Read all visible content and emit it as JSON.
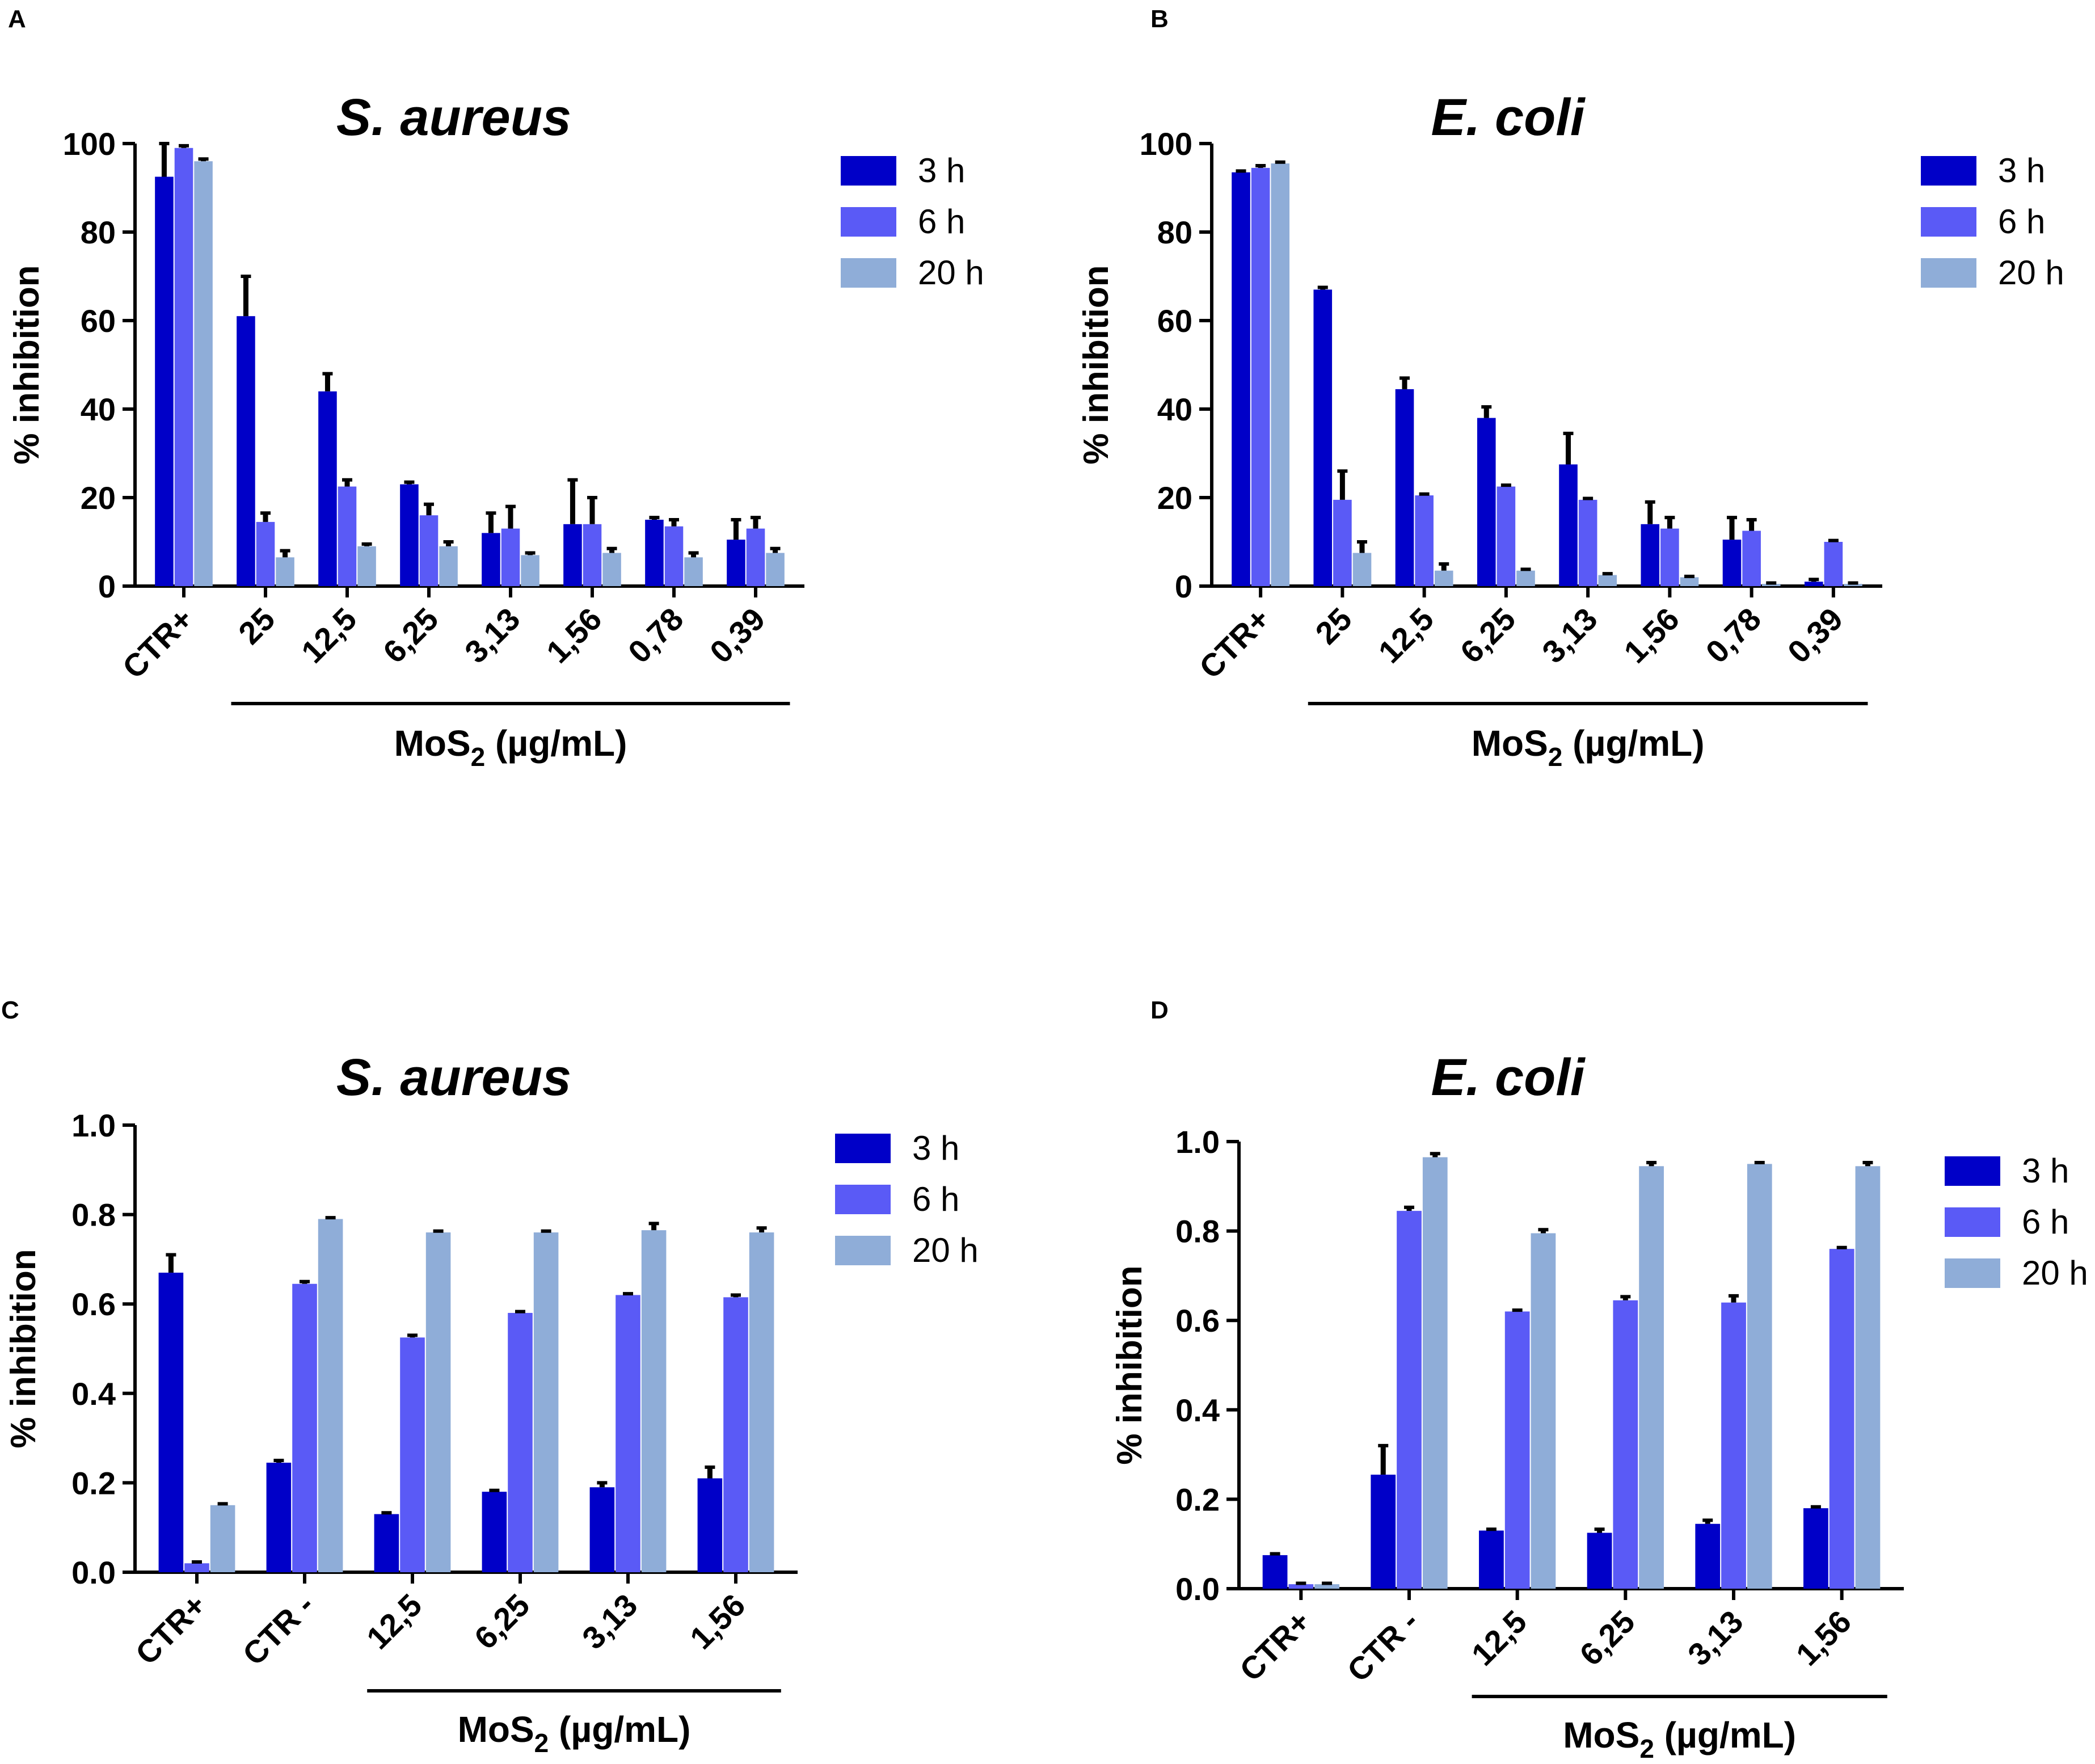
{
  "figure": {
    "colors": {
      "3h": "#0000c8",
      "6h": "#5a5af6",
      "20h": "#8fadd8"
    }
  },
  "chart_data": [
    {
      "panel": "A",
      "type": "bar",
      "title": "S. aureus",
      "ylabel": "% inhibition",
      "group_label_main": "MoS",
      "group_label_sub": "2",
      "group_label_tail": " (µg/mL)",
      "ylim": [
        0,
        100
      ],
      "yticks": [
        0,
        20,
        40,
        60,
        80,
        100
      ],
      "ytick_labels": [
        "0",
        "20",
        "40",
        "60",
        "80",
        "100"
      ],
      "categories": [
        "CTR+",
        "25",
        "12,5",
        "6,25",
        "3,13",
        "1,56",
        "0,78",
        "0,39"
      ],
      "group_span": [
        1,
        7
      ],
      "series": [
        {
          "name": "3 h",
          "values": [
            92.5,
            61,
            44,
            23,
            12,
            14,
            15,
            10.5
          ],
          "errors": [
            7.5,
            9,
            4,
            0.5,
            4.5,
            10,
            0.5,
            4.5
          ]
        },
        {
          "name": "6 h",
          "values": [
            99,
            14.5,
            22.5,
            16,
            13,
            14,
            13.5,
            13
          ],
          "errors": [
            0.5,
            2,
            1.5,
            2.5,
            5,
            6,
            1.5,
            2.5
          ]
        },
        {
          "name": "20 h",
          "values": [
            96,
            6.5,
            9,
            9,
            7,
            7.5,
            6.5,
            7.5
          ],
          "errors": [
            0.5,
            1.5,
            0.5,
            1,
            0.5,
            1,
            1,
            1
          ]
        }
      ]
    },
    {
      "panel": "B",
      "type": "bar",
      "title": "E. coli",
      "ylabel": "% inhibition",
      "group_label_main": "MoS",
      "group_label_sub": "2",
      "group_label_tail": " (µg/mL)",
      "ylim": [
        0,
        100
      ],
      "yticks": [
        0,
        20,
        40,
        60,
        80,
        100
      ],
      "ytick_labels": [
        "0",
        "20",
        "40",
        "60",
        "80",
        "100"
      ],
      "categories": [
        "CTR+",
        "25",
        "12,5",
        "6,25",
        "3,13",
        "1,56",
        "0,78",
        "0,39"
      ],
      "group_span": [
        1,
        7
      ],
      "series": [
        {
          "name": "3 h",
          "values": [
            93.5,
            67,
            44.5,
            38,
            27.5,
            14,
            10.5,
            1
          ],
          "errors": [
            0.3,
            0.5,
            2.5,
            2.5,
            7,
            5,
            5,
            0.5
          ]
        },
        {
          "name": "6 h",
          "values": [
            94.5,
            19.5,
            20.5,
            22.5,
            19.5,
            13,
            12.5,
            10
          ],
          "errors": [
            0.5,
            6.5,
            0.3,
            0.3,
            0.3,
            2.5,
            2.5,
            0.3
          ]
        },
        {
          "name": "20 h",
          "values": [
            95.5,
            7.5,
            3.5,
            3.5,
            2.5,
            2,
            0.5,
            0.5
          ],
          "errors": [
            0.3,
            2.5,
            1.5,
            0.3,
            0.3,
            0.2,
            0.2,
            0.2
          ]
        }
      ]
    },
    {
      "panel": "C",
      "type": "bar",
      "title": "S. aureus",
      "ylabel": "% inhibition",
      "group_label_main": "MoS",
      "group_label_sub": "2",
      "group_label_tail": " (µg/mL)",
      "ylim": [
        0,
        1.0
      ],
      "yticks": [
        0,
        0.2,
        0.4,
        0.6,
        0.8,
        1.0
      ],
      "ytick_labels": [
        "0.0",
        "0.2",
        "0.4",
        "0.6",
        "0.8",
        "1.0"
      ],
      "categories": [
        "CTR+",
        "CTR -",
        "12,5",
        "6,25",
        "3,13",
        "1,56"
      ],
      "group_span": [
        2,
        5
      ],
      "series": [
        {
          "name": "3 h",
          "values": [
            0.67,
            0.245,
            0.13,
            0.18,
            0.19,
            0.21
          ],
          "errors": [
            0.04,
            0.005,
            0.003,
            0.003,
            0.01,
            0.025
          ]
        },
        {
          "name": "6 h",
          "values": [
            0.02,
            0.645,
            0.525,
            0.58,
            0.62,
            0.615
          ],
          "errors": [
            0.003,
            0.005,
            0.005,
            0.003,
            0.003,
            0.005
          ]
        },
        {
          "name": "20 h",
          "values": [
            0.15,
            0.79,
            0.76,
            0.76,
            0.765,
            0.76
          ],
          "errors": [
            0.003,
            0.003,
            0.003,
            0.003,
            0.015,
            0.01
          ]
        }
      ]
    },
    {
      "panel": "D",
      "type": "bar",
      "title": "E. coli",
      "ylabel": "% inhibition",
      "group_label_main": "MoS",
      "group_label_sub": "2",
      "group_label_tail": " (µg/mL)",
      "ylim": [
        0,
        1.0
      ],
      "yticks": [
        0,
        0.2,
        0.4,
        0.6,
        0.8,
        1.0
      ],
      "ytick_labels": [
        "0.0",
        "0.2",
        "0.4",
        "0.6",
        "0.8",
        "1.0"
      ],
      "categories": [
        "CTR+",
        "CTR -",
        "12,5",
        "6,25",
        "3,13",
        "1,56"
      ],
      "group_span": [
        2,
        5
      ],
      "series": [
        {
          "name": "3 h",
          "values": [
            0.075,
            0.255,
            0.13,
            0.125,
            0.145,
            0.18
          ],
          "errors": [
            0.003,
            0.065,
            0.003,
            0.008,
            0.008,
            0.003
          ]
        },
        {
          "name": "6 h",
          "values": [
            0.01,
            0.845,
            0.62,
            0.645,
            0.64,
            0.76
          ],
          "errors": [
            0.002,
            0.008,
            0.003,
            0.008,
            0.015,
            0.003
          ]
        },
        {
          "name": "20 h",
          "values": [
            0.01,
            0.965,
            0.795,
            0.945,
            0.95,
            0.945
          ],
          "errors": [
            0.002,
            0.008,
            0.008,
            0.008,
            0.003,
            0.008
          ]
        }
      ]
    }
  ]
}
